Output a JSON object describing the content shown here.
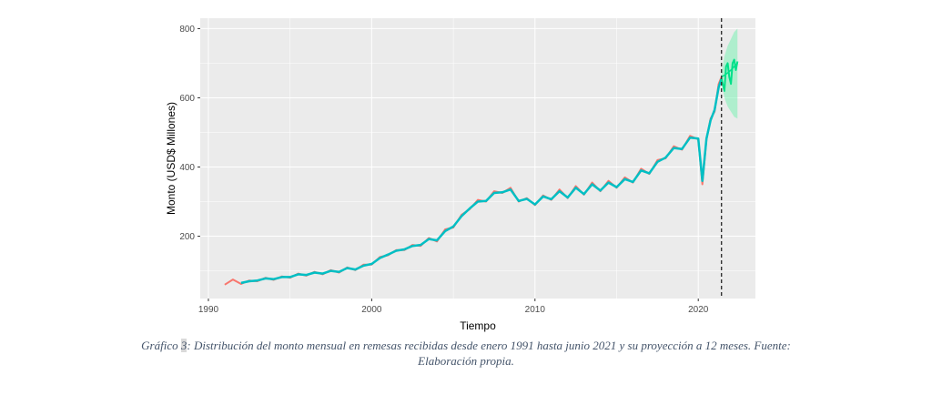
{
  "chart_data": {
    "type": "line",
    "xlabel": "Tiempo",
    "ylabel": "Monto (USD$ Millones)",
    "xlim": [
      1989.5,
      2023.5
    ],
    "ylim": [
      20,
      830
    ],
    "x_ticks": [
      1990,
      2000,
      2010,
      2020
    ],
    "x_tick_labels": [
      "1990",
      "2000",
      "2010",
      "2020"
    ],
    "y_ticks": [
      200,
      400,
      600,
      800
    ],
    "y_tick_labels": [
      "200",
      "400",
      "600",
      "800"
    ],
    "grid": true,
    "legend": "none",
    "vertical_line": {
      "x": 2021.42,
      "style": "dashed"
    },
    "colors": {
      "panel": "#ebebeb",
      "grid": "#ffffff",
      "observed": "#f8766d",
      "fitted": "#00bfc4",
      "forecast": "#00e08a",
      "forecast_band": "#7cf0b4",
      "vline": "#333333"
    },
    "series": [
      {
        "x": [
          1991.0,
          1991.5,
          1992.0,
          1992.5,
          1993.0,
          1993.5,
          1994.0,
          1994.5,
          1995.0,
          1995.5,
          1996.0,
          1996.5,
          1997.0,
          1997.5,
          1998.0,
          1998.5,
          1999.0,
          1999.5,
          2000.0,
          2000.5,
          2001.0,
          2001.5,
          2002.0,
          2002.5,
          2003.0,
          2003.5,
          2004.0,
          2004.5,
          2005.0,
          2005.5,
          2006.0,
          2006.5,
          2007.0,
          2007.5,
          2008.0,
          2008.5,
          2009.0,
          2009.5,
          2010.0,
          2010.5,
          2011.0,
          2011.5,
          2012.0,
          2012.5,
          2013.0,
          2013.5,
          2014.0,
          2014.5,
          2015.0,
          2015.5,
          2016.0,
          2016.5,
          2017.0,
          2017.5,
          2018.0,
          2018.5,
          2019.0,
          2019.5,
          2020.0,
          2020.25,
          2020.5,
          2020.75,
          2021.0,
          2021.25,
          2021.42
        ],
        "values": [
          60,
          75,
          62,
          72,
          70,
          80,
          74,
          84,
          80,
          92,
          86,
          97,
          90,
          102,
          95,
          110,
          102,
          118,
          118,
          140,
          145,
          160,
          160,
          175,
          172,
          195,
          185,
          220,
          225,
          262,
          278,
          305,
          300,
          330,
          325,
          340,
          300,
          310,
          290,
          318,
          305,
          335,
          310,
          345,
          320,
          355,
          330,
          360,
          340,
          370,
          355,
          395,
          380,
          420,
          425,
          460,
          450,
          490,
          480,
          350,
          480,
          540,
          560,
          640,
          660
        ]
      },
      {
        "x": [
          1992.0,
          1992.5,
          1993.0,
          1993.5,
          1994.0,
          1994.5,
          1995.0,
          1995.5,
          1996.0,
          1996.5,
          1997.0,
          1997.5,
          1998.0,
          1998.5,
          1999.0,
          1999.5,
          2000.0,
          2000.5,
          2001.0,
          2001.5,
          2002.0,
          2002.5,
          2003.0,
          2003.5,
          2004.0,
          2004.5,
          2005.0,
          2005.5,
          2006.0,
          2006.5,
          2007.0,
          2007.5,
          2008.0,
          2008.5,
          2009.0,
          2009.5,
          2010.0,
          2010.5,
          2011.0,
          2011.5,
          2012.0,
          2012.5,
          2013.0,
          2013.5,
          2014.0,
          2014.5,
          2015.0,
          2015.5,
          2016.0,
          2016.5,
          2017.0,
          2017.5,
          2018.0,
          2018.5,
          2019.0,
          2019.5,
          2020.0,
          2020.25,
          2020.5,
          2020.75,
          2021.0,
          2021.25,
          2021.42
        ],
        "values": [
          65,
          70,
          72,
          78,
          76,
          82,
          82,
          90,
          88,
          95,
          92,
          100,
          97,
          108,
          104,
          115,
          120,
          137,
          147,
          158,
          162,
          172,
          175,
          192,
          188,
          215,
          228,
          258,
          280,
          300,
          302,
          325,
          327,
          335,
          302,
          308,
          292,
          315,
          307,
          330,
          312,
          340,
          322,
          350,
          332,
          355,
          342,
          365,
          357,
          390,
          382,
          415,
          427,
          455,
          452,
          485,
          482,
          360,
          482,
          535,
          565,
          630,
          655
        ]
      },
      {
        "x": [
          2021.42,
          2021.5,
          2021.6,
          2021.7,
          2021.8,
          2021.9,
          2022.0,
          2022.1,
          2022.2,
          2022.3,
          2022.4
        ],
        "values": [
          655,
          640,
          620,
          690,
          700,
          660,
          640,
          700,
          710,
          680,
          705
        ]
      },
      {
        "x": [
          2021.42,
          2021.6,
          2021.8,
          2022.0,
          2022.2,
          2022.4
        ],
        "values": [
          660,
          665,
          672,
          680,
          690,
          700
        ],
        "low": [
          650,
          600,
          575,
          560,
          545,
          540
        ],
        "high": [
          670,
          720,
          750,
          770,
          790,
          800
        ]
      }
    ]
  },
  "caption": {
    "prefix": "Gráfico ",
    "number": "3",
    "text": ": Distribución del monto mensual en remesas recibidas desde enero 1991 hasta junio 2021 y su proyección a 12 meses. Fuente: Elaboración propia."
  }
}
